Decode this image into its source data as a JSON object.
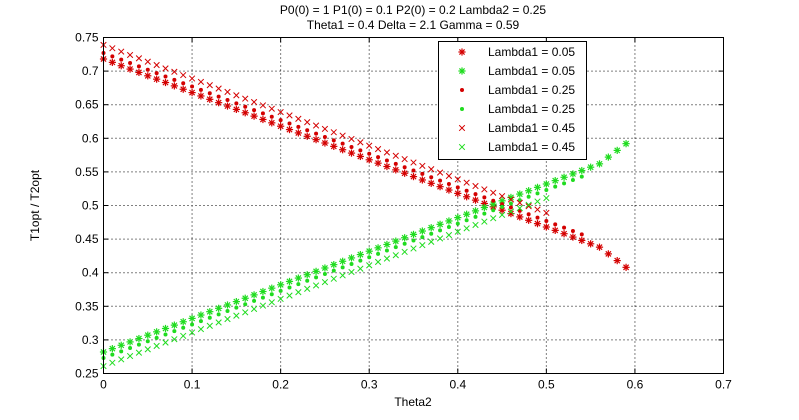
{
  "chart_data": {
    "type": "scatter",
    "title_lines": [
      "P0(0) = 1 P1(0) = 0.1 P2(0) = 0.2 Lambda2 = 0.25",
      "Theta1 = 0.4 Delta = 2.1 Gamma = 0.59"
    ],
    "xlabel": "Theta2",
    "ylabel": "T1opt / T2opt",
    "xlim": [
      0,
      0.7
    ],
    "ylim": [
      0.25,
      0.75
    ],
    "xticks": [
      0,
      0.1,
      0.2,
      0.3,
      0.4,
      0.5,
      0.6,
      0.7
    ],
    "xtick_labels": [
      "0",
      "0.1",
      "0.2",
      "0.3",
      "0.4",
      "0.5",
      "0.6",
      "0.7"
    ],
    "yticks": [
      0.25,
      0.3,
      0.35,
      0.4,
      0.45,
      0.5,
      0.55,
      0.6,
      0.65,
      0.7,
      0.75
    ],
    "ytick_labels": [
      "0.25",
      "0.3",
      "0.35",
      "0.4",
      "0.45",
      "0.5",
      "0.55",
      "0.6",
      "0.65",
      "0.7",
      "0.75"
    ],
    "grid": true,
    "grid_style": "dotted",
    "legend_position": "top-right",
    "x": [
      0,
      0.01,
      0.02,
      0.03,
      0.04,
      0.05,
      0.06,
      0.07,
      0.08,
      0.09,
      0.1,
      0.11,
      0.12,
      0.13,
      0.14,
      0.15,
      0.16,
      0.17,
      0.18,
      0.19,
      0.2,
      0.21,
      0.22,
      0.23,
      0.24,
      0.25,
      0.26,
      0.27,
      0.28,
      0.29,
      0.3,
      0.31,
      0.32,
      0.33,
      0.34,
      0.35,
      0.36,
      0.37,
      0.38,
      0.39,
      0.4,
      0.41,
      0.42,
      0.43,
      0.44,
      0.45,
      0.46,
      0.47,
      0.48,
      0.49,
      0.5,
      0.51,
      0.52,
      0.53,
      0.54,
      0.55,
      0.56,
      0.57,
      0.58,
      0.59
    ],
    "series": [
      {
        "name": "Lambda1 = 0.05",
        "color": "#d40000",
        "marker": "asterisk",
        "values": [
          0.718,
          0.713,
          0.708,
          0.703,
          0.698,
          0.693,
          0.688,
          0.683,
          0.678,
          0.673,
          0.668,
          0.663,
          0.658,
          0.653,
          0.648,
          0.643,
          0.638,
          0.633,
          0.628,
          0.623,
          0.618,
          0.613,
          0.608,
          0.603,
          0.598,
          0.593,
          0.588,
          0.583,
          0.578,
          0.573,
          0.568,
          0.563,
          0.558,
          0.553,
          0.548,
          0.543,
          0.538,
          0.533,
          0.528,
          0.523,
          0.518,
          0.513,
          0.508,
          0.503,
          0.498,
          0.493,
          0.488,
          0.483,
          0.478,
          0.473,
          0.468,
          0.463,
          0.458,
          0.453,
          0.448,
          0.443,
          0.438,
          0.428,
          0.418,
          0.408
        ]
      },
      {
        "name": "Lambda1 = 0.05",
        "color": "#1fdc1f",
        "marker": "asterisk",
        "values": [
          0.282,
          0.287,
          0.292,
          0.297,
          0.302,
          0.307,
          0.312,
          0.317,
          0.322,
          0.327,
          0.332,
          0.337,
          0.342,
          0.347,
          0.352,
          0.357,
          0.362,
          0.367,
          0.372,
          0.377,
          0.382,
          0.387,
          0.392,
          0.397,
          0.402,
          0.407,
          0.412,
          0.417,
          0.422,
          0.427,
          0.432,
          0.437,
          0.442,
          0.447,
          0.452,
          0.457,
          0.462,
          0.467,
          0.472,
          0.477,
          0.482,
          0.487,
          0.492,
          0.497,
          0.502,
          0.507,
          0.512,
          0.517,
          0.522,
          0.527,
          0.532,
          0.537,
          0.542,
          0.547,
          0.552,
          0.557,
          0.562,
          0.572,
          0.582,
          0.592
        ]
      },
      {
        "name": "Lambda1 = 0.25",
        "color": "#d40000",
        "marker": "dot",
        "values": [
          0.727,
          0.722,
          0.717,
          0.712,
          0.707,
          0.702,
          0.697,
          0.692,
          0.687,
          0.682,
          0.677,
          0.672,
          0.667,
          0.662,
          0.657,
          0.652,
          0.647,
          0.642,
          0.637,
          0.632,
          0.627,
          0.622,
          0.617,
          0.612,
          0.607,
          0.602,
          0.597,
          0.592,
          0.587,
          0.582,
          0.577,
          0.572,
          0.567,
          0.562,
          0.557,
          0.552,
          0.547,
          0.542,
          0.537,
          0.532,
          0.527,
          0.522,
          0.517,
          0.512,
          0.507,
          0.502,
          0.497,
          0.492,
          0.487,
          0.482,
          0.477,
          0.472,
          0.467,
          0.462,
          0.457
        ]
      },
      {
        "name": "Lambda1 = 0.25",
        "color": "#1fdc1f",
        "marker": "dot",
        "values": [
          0.273,
          0.278,
          0.283,
          0.288,
          0.293,
          0.298,
          0.303,
          0.308,
          0.313,
          0.318,
          0.323,
          0.328,
          0.333,
          0.338,
          0.343,
          0.348,
          0.353,
          0.358,
          0.363,
          0.368,
          0.373,
          0.378,
          0.383,
          0.388,
          0.393,
          0.398,
          0.403,
          0.408,
          0.413,
          0.418,
          0.423,
          0.428,
          0.433,
          0.438,
          0.443,
          0.448,
          0.453,
          0.458,
          0.463,
          0.468,
          0.473,
          0.478,
          0.483,
          0.488,
          0.493,
          0.498,
          0.503,
          0.508,
          0.513,
          0.518,
          0.523,
          0.528,
          0.533,
          0.538,
          0.543
        ]
      },
      {
        "name": "Lambda1 = 0.45",
        "color": "#d40000",
        "marker": "x",
        "values": [
          0.739,
          0.734,
          0.729,
          0.724,
          0.719,
          0.714,
          0.709,
          0.704,
          0.699,
          0.694,
          0.689,
          0.684,
          0.679,
          0.674,
          0.669,
          0.664,
          0.659,
          0.654,
          0.649,
          0.644,
          0.639,
          0.634,
          0.629,
          0.624,
          0.619,
          0.614,
          0.609,
          0.604,
          0.599,
          0.594,
          0.589,
          0.584,
          0.579,
          0.574,
          0.569,
          0.564,
          0.559,
          0.554,
          0.549,
          0.544,
          0.539,
          0.534,
          0.529,
          0.524,
          0.519,
          0.514,
          0.509,
          0.504,
          0.499,
          0.494,
          0.489
        ]
      },
      {
        "name": "Lambda1 = 0.45",
        "color": "#1fdc1f",
        "marker": "x",
        "values": [
          0.261,
          0.266,
          0.271,
          0.276,
          0.281,
          0.286,
          0.291,
          0.296,
          0.301,
          0.306,
          0.311,
          0.316,
          0.321,
          0.326,
          0.331,
          0.336,
          0.341,
          0.346,
          0.351,
          0.356,
          0.361,
          0.366,
          0.371,
          0.376,
          0.381,
          0.386,
          0.391,
          0.396,
          0.401,
          0.406,
          0.411,
          0.416,
          0.421,
          0.426,
          0.431,
          0.436,
          0.441,
          0.446,
          0.451,
          0.456,
          0.461,
          0.466,
          0.471,
          0.476,
          0.481,
          0.486,
          0.491,
          0.496,
          0.501,
          0.506,
          0.511
        ]
      }
    ]
  }
}
